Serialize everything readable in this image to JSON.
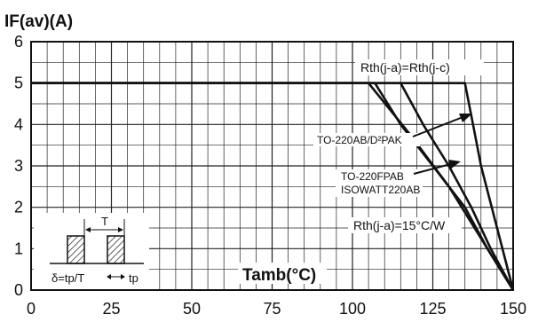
{
  "chart_data": {
    "type": "line",
    "title": "IF(av)(A)",
    "xlabel": "Tamb(°C)",
    "ylabel": "",
    "xlim": [
      0,
      150
    ],
    "ylim": [
      0,
      6
    ],
    "x_ticks": [
      0,
      25,
      50,
      75,
      100,
      125,
      150
    ],
    "y_ticks": [
      0,
      1,
      2,
      3,
      4,
      5,
      6
    ],
    "grid": true,
    "minor_grid_step_x": 5,
    "minor_grid_step_y": 0.5,
    "series": [
      {
        "name": "Rth(j-a)=Rth(j-c)",
        "x": [
          0,
          135,
          137.5,
          140,
          145,
          150
        ],
        "y": [
          5,
          5,
          4,
          3,
          1.5,
          0
        ]
      },
      {
        "name": "TO-220AB/D²PAK",
        "x": [
          0,
          115,
          122,
          130,
          137,
          143,
          150
        ],
        "y": [
          5,
          5,
          4,
          3,
          2,
          1,
          0
        ]
      },
      {
        "name": "TO-220FPAB ISOWATT220AB",
        "x": [
          0,
          107,
          115,
          125,
          135,
          142,
          150
        ],
        "y": [
          5,
          5,
          4,
          3,
          2,
          1,
          0
        ]
      },
      {
        "name": "Rth(j-a)=15°C/W",
        "x": [
          0,
          105,
          118,
          130,
          140,
          150
        ],
        "y": [
          5,
          5,
          3.75,
          2.5,
          1.25,
          0
        ]
      }
    ],
    "annotations": {
      "rth_jc": "Rth(j-a)=Rth(j-c)",
      "to220ab": "TO-220AB/D²PAK",
      "to220fpab": "TO-220FPAB",
      "isowatt": "ISOWATT220AB",
      "rth15": "Rth(j-a)=15°C/W"
    },
    "inset": {
      "period_label": "T",
      "duty_label": "δ=tp/T",
      "pulse_label": "tp"
    }
  }
}
